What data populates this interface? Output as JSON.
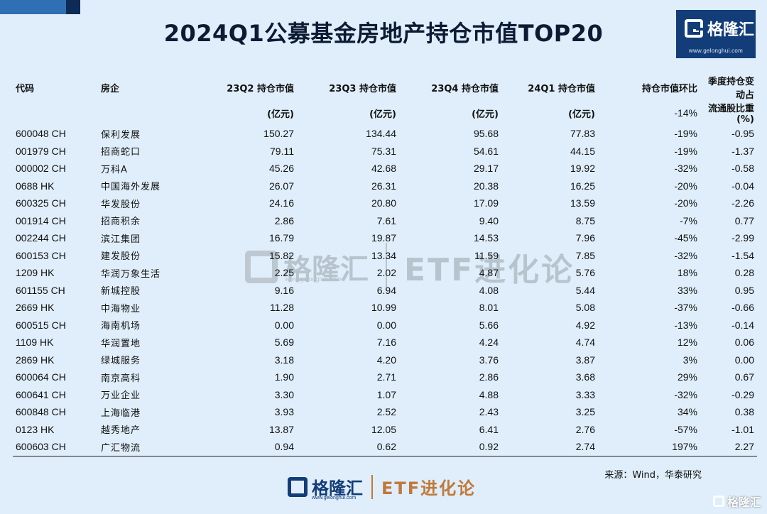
{
  "title": "2024Q1公募基金房地产持仓市值TOP20",
  "brand": {
    "name": "格隆汇",
    "url": "www.gelonghui.com"
  },
  "columns": {
    "code": "代码",
    "company": "房企",
    "q2": [
      "23Q2 持仓市值",
      "(亿元)"
    ],
    "q3": [
      "23Q3 持仓市值",
      "(亿元)"
    ],
    "q4": [
      "23Q4 持仓市值",
      "(亿元)"
    ],
    "q1": [
      "24Q1 持仓市值",
      "(亿元)"
    ],
    "change": [
      "持仓市值环比",
      "-14%"
    ],
    "ratio": [
      "季度持仓变动占",
      "流通股比重 (%)"
    ]
  },
  "rows": [
    {
      "code": "600048 CH",
      "name": "保利发展",
      "q2": "150.27",
      "q3": "134.44",
      "q4": "95.68",
      "q1": "77.83",
      "chg": "-19%",
      "ratio": "-0.95"
    },
    {
      "code": "001979 CH",
      "name": "招商蛇口",
      "q2": "79.11",
      "q3": "75.31",
      "q4": "54.61",
      "q1": "44.15",
      "chg": "-19%",
      "ratio": "-1.37"
    },
    {
      "code": "000002 CH",
      "name": "万科A",
      "q2": "45.26",
      "q3": "42.68",
      "q4": "29.17",
      "q1": "19.92",
      "chg": "-32%",
      "ratio": "-0.58"
    },
    {
      "code": "0688 HK",
      "name": "中国海外发展",
      "q2": "26.07",
      "q3": "26.31",
      "q4": "20.38",
      "q1": "16.25",
      "chg": "-20%",
      "ratio": "-0.04"
    },
    {
      "code": "600325 CH",
      "name": "华发股份",
      "q2": "24.16",
      "q3": "20.80",
      "q4": "17.09",
      "q1": "13.59",
      "chg": "-20%",
      "ratio": "-2.26"
    },
    {
      "code": "001914 CH",
      "name": "招商积余",
      "q2": "2.86",
      "q3": "7.61",
      "q4": "9.40",
      "q1": "8.75",
      "chg": "-7%",
      "ratio": "0.77"
    },
    {
      "code": "002244 CH",
      "name": "滨江集团",
      "q2": "16.79",
      "q3": "19.87",
      "q4": "14.53",
      "q1": "7.96",
      "chg": "-45%",
      "ratio": "-2.99"
    },
    {
      "code": "600153 CH",
      "name": "建发股份",
      "q2": "15.82",
      "q3": "13.34",
      "q4": "11.59",
      "q1": "7.85",
      "chg": "-32%",
      "ratio": "-1.54"
    },
    {
      "code": "1209 HK",
      "name": "华润万象生活",
      "q2": "2.25",
      "q3": "2.02",
      "q4": "4.87",
      "q1": "5.76",
      "chg": "18%",
      "ratio": "0.28"
    },
    {
      "code": "601155 CH",
      "name": "新城控股",
      "q2": "9.16",
      "q3": "6.94",
      "q4": "4.08",
      "q1": "5.44",
      "chg": "33%",
      "ratio": "0.95"
    },
    {
      "code": "2669 HK",
      "name": "中海物业",
      "q2": "11.28",
      "q3": "10.99",
      "q4": "8.01",
      "q1": "5.08",
      "chg": "-37%",
      "ratio": "-0.66"
    },
    {
      "code": "600515 CH",
      "name": "海南机场",
      "q2": "0.00",
      "q3": "0.00",
      "q4": "5.66",
      "q1": "4.92",
      "chg": "-13%",
      "ratio": "-0.14"
    },
    {
      "code": "1109 HK",
      "name": "华润置地",
      "q2": "5.69",
      "q3": "7.16",
      "q4": "4.24",
      "q1": "4.74",
      "chg": "12%",
      "ratio": "0.06"
    },
    {
      "code": "2869 HK",
      "name": "绿城服务",
      "q2": "3.18",
      "q3": "4.20",
      "q4": "3.76",
      "q1": "3.87",
      "chg": "3%",
      "ratio": "0.00"
    },
    {
      "code": "600064 CH",
      "name": "南京高科",
      "q2": "1.90",
      "q3": "2.71",
      "q4": "2.86",
      "q1": "3.68",
      "chg": "29%",
      "ratio": "0.67"
    },
    {
      "code": "600641 CH",
      "name": "万业企业",
      "q2": "3.30",
      "q3": "1.07",
      "q4": "4.88",
      "q1": "3.33",
      "chg": "-32%",
      "ratio": "-0.29"
    },
    {
      "code": "600848 CH",
      "name": "上海临港",
      "q2": "3.93",
      "q3": "2.52",
      "q4": "2.43",
      "q1": "3.25",
      "chg": "34%",
      "ratio": "0.38"
    },
    {
      "code": "0123 HK",
      "name": "越秀地产",
      "q2": "13.87",
      "q3": "12.05",
      "q4": "6.41",
      "q1": "2.76",
      "chg": "-57%",
      "ratio": "-1.01"
    },
    {
      "code": "600603 CH",
      "name": "广汇物流",
      "q2": "0.94",
      "q3": "0.62",
      "q4": "0.92",
      "q1": "2.74",
      "chg": "197%",
      "ratio": "2.27"
    }
  ],
  "watermark": {
    "name": "格隆汇",
    "url": "www.gelonghui.com",
    "etf": "ETF进化论"
  },
  "source": "来源：Wind，华泰研究",
  "footer": {
    "name": "格隆汇",
    "url": "www.gelonghui.com",
    "etf": "ETF进化论"
  },
  "corner_mark": "格隆汇"
}
